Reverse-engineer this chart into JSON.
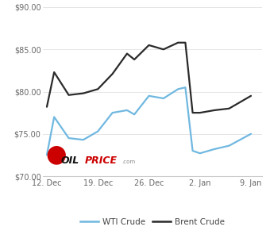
{
  "wti_x": [
    0,
    1,
    3,
    5,
    7,
    9,
    11,
    12,
    14,
    16,
    18,
    19,
    20,
    21,
    23,
    25,
    28
  ],
  "wti_y": [
    72.5,
    77.0,
    74.5,
    74.3,
    75.3,
    77.5,
    77.8,
    77.3,
    79.5,
    79.2,
    80.3,
    80.5,
    73.0,
    72.7,
    73.2,
    73.6,
    75.0
  ],
  "brent_x": [
    0,
    1,
    3,
    5,
    7,
    9,
    11,
    12,
    14,
    16,
    18,
    19,
    20,
    21,
    23,
    25,
    28
  ],
  "brent_y": [
    78.2,
    82.3,
    79.6,
    79.8,
    80.3,
    82.1,
    84.5,
    83.8,
    85.5,
    85.0,
    85.8,
    85.8,
    77.5,
    77.5,
    77.8,
    78.0,
    79.5
  ],
  "wti_color": "#70b8e0",
  "brent_color": "#2a2a2a",
  "bg_color": "#ffffff",
  "grid_color": "#e5e5e5",
  "ylim": [
    70.0,
    90.0
  ],
  "yticks": [
    70.0,
    75.0,
    80.0,
    85.0,
    90.0
  ],
  "xtick_positions": [
    0,
    7,
    14,
    21,
    28
  ],
  "xtick_labels": [
    "12. Dec",
    "19. Dec",
    "26. Dec",
    "2. Jan",
    "9. Jan"
  ],
  "xlim": [
    -0.5,
    29.5
  ],
  "legend_wti": "WTI Crude",
  "legend_brent": "Brent Crude",
  "line_width": 1.6,
  "font_size_ticks": 7,
  "font_size_legend": 7.5,
  "spine_color": "#cccccc",
  "tick_color": "#666666"
}
